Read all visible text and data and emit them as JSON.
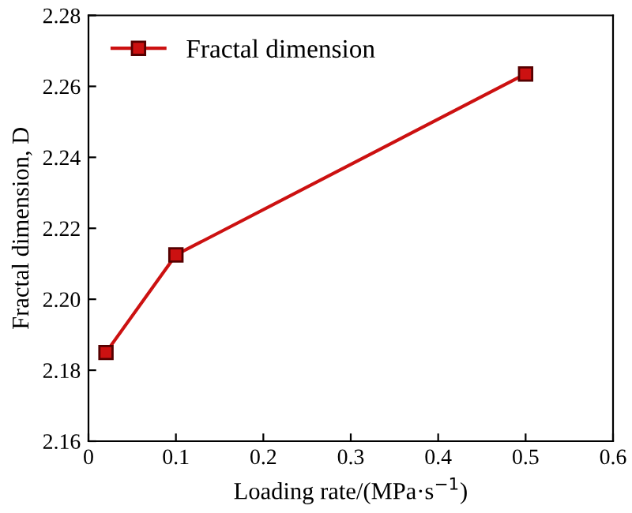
{
  "chart_data": {
    "type": "line",
    "xlabel": "Loading rate/(MPa·s$^{−1}$)",
    "ylabel": "Fractal dimension, D",
    "x": [
      0.02,
      0.1,
      0.5
    ],
    "series": [
      {
        "name": "Fractal dimension",
        "color": "#cc1111",
        "values": [
          2.185,
          2.2125,
          2.2635
        ]
      }
    ],
    "xlim": [
      0,
      0.6
    ],
    "xticks": [
      0,
      0.1,
      0.2,
      0.3,
      0.4,
      0.5,
      0.6
    ],
    "ylim": [
      2.16,
      2.28
    ],
    "yticks": [
      2.16,
      2.18,
      {
        "value": 2.2,
        "label": "2.20"
      },
      2.22,
      2.24,
      2.26,
      2.28
    ],
    "marker": "square",
    "line_style": "solid",
    "legend": "top left",
    "grid": false
  }
}
